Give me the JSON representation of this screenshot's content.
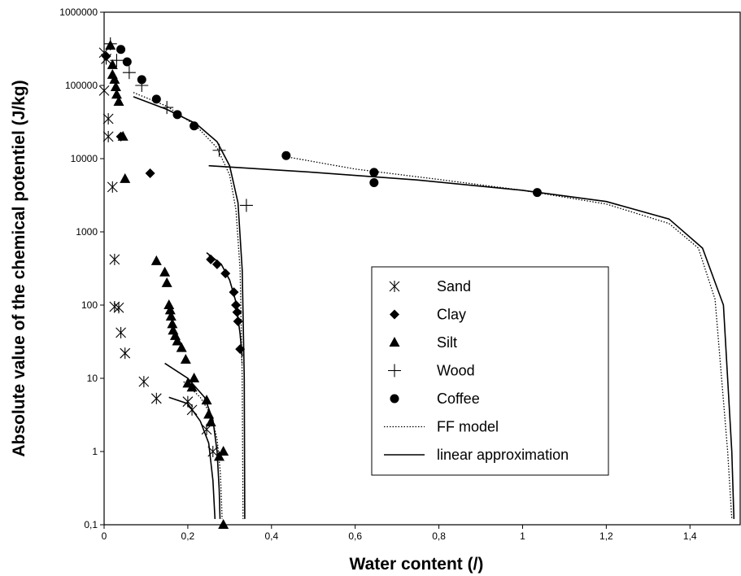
{
  "chart_data": {
    "type": "scatter",
    "xlabel": "Water content (/)",
    "ylabel": "Absolute value of the chemical potentiel (J/kg)",
    "x_scale": "linear",
    "y_scale": "log",
    "xlim": [
      0,
      1.52
    ],
    "ylim": [
      0.1,
      1000000
    ],
    "x_ticks": [
      {
        "value": 0,
        "label": "0"
      },
      {
        "value": 0.2,
        "label": "0,2"
      },
      {
        "value": 0.4,
        "label": "0,4"
      },
      {
        "value": 0.6,
        "label": "0,6"
      },
      {
        "value": 0.8,
        "label": "0,8"
      },
      {
        "value": 1.0,
        "label": "1"
      },
      {
        "value": 1.2,
        "label": "1,2"
      },
      {
        "value": 1.4,
        "label": "1,4"
      }
    ],
    "y_ticks": [
      {
        "value": 0.1,
        "label": "0,1"
      },
      {
        "value": 1,
        "label": "1"
      },
      {
        "value": 10,
        "label": "10"
      },
      {
        "value": 100,
        "label": "100"
      },
      {
        "value": 1000,
        "label": "1000"
      },
      {
        "value": 10000,
        "label": "10000"
      },
      {
        "value": 100000,
        "label": "100000"
      },
      {
        "value": 1000000,
        "label": "1000000"
      }
    ],
    "grid": false,
    "legend_position": "center-right",
    "series": [
      {
        "name": "Sand",
        "marker": "asterisk",
        "points": [
          [
            0.0,
            280000
          ],
          [
            0.005,
            230000
          ],
          [
            0.0,
            85000
          ],
          [
            0.01,
            35000
          ],
          [
            0.01,
            20000
          ],
          [
            0.02,
            4100
          ],
          [
            0.025,
            420
          ],
          [
            0.025,
            95
          ],
          [
            0.035,
            92
          ],
          [
            0.04,
            42
          ],
          [
            0.05,
            22
          ],
          [
            0.095,
            9
          ],
          [
            0.125,
            5.3
          ],
          [
            0.2,
            4.8
          ],
          [
            0.21,
            3.7
          ],
          [
            0.245,
            2.0
          ],
          [
            0.26,
            1.0
          ]
        ]
      },
      {
        "name": "Clay",
        "marker": "diamond",
        "points": [
          [
            0.005,
            250000
          ],
          [
            0.04,
            20000
          ],
          [
            0.11,
            6300
          ],
          [
            0.255,
            420
          ],
          [
            0.27,
            360
          ],
          [
            0.29,
            270
          ],
          [
            0.31,
            150
          ],
          [
            0.315,
            100
          ],
          [
            0.318,
            80
          ],
          [
            0.32,
            60
          ],
          [
            0.325,
            25
          ]
        ]
      },
      {
        "name": "Silt",
        "marker": "triangle",
        "points": [
          [
            0.015,
            350000
          ],
          [
            0.02,
            190000
          ],
          [
            0.02,
            140000
          ],
          [
            0.025,
            120000
          ],
          [
            0.028,
            95000
          ],
          [
            0.03,
            75000
          ],
          [
            0.035,
            60000
          ],
          [
            0.045,
            20000
          ],
          [
            0.05,
            5300
          ],
          [
            0.125,
            400
          ],
          [
            0.145,
            280
          ],
          [
            0.15,
            200
          ],
          [
            0.155,
            100
          ],
          [
            0.158,
            85
          ],
          [
            0.16,
            70
          ],
          [
            0.163,
            55
          ],
          [
            0.165,
            45
          ],
          [
            0.17,
            38
          ],
          [
            0.175,
            32
          ],
          [
            0.185,
            26
          ],
          [
            0.195,
            18
          ],
          [
            0.2,
            8.5
          ],
          [
            0.21,
            7.5
          ],
          [
            0.215,
            10
          ],
          [
            0.245,
            5.0
          ],
          [
            0.25,
            3.2
          ],
          [
            0.255,
            2.5
          ],
          [
            0.275,
            0.85
          ],
          [
            0.285,
            1.0
          ],
          [
            0.285,
            0.1
          ]
        ]
      },
      {
        "name": "Wood",
        "marker": "plus",
        "points": [
          [
            0.015,
            370000
          ],
          [
            0.03,
            220000
          ],
          [
            0.06,
            150000
          ],
          [
            0.09,
            100000
          ],
          [
            0.15,
            50000
          ],
          [
            0.275,
            13000
          ],
          [
            0.34,
            2300
          ]
        ]
      },
      {
        "name": "Coffee",
        "marker": "circle",
        "points": [
          [
            0.04,
            310000
          ],
          [
            0.055,
            210000
          ],
          [
            0.09,
            120000
          ],
          [
            0.125,
            65000
          ],
          [
            0.175,
            40000
          ],
          [
            0.215,
            28000
          ],
          [
            0.435,
            11000
          ],
          [
            0.645,
            6500
          ],
          [
            0.645,
            4700
          ],
          [
            1.035,
            3450
          ]
        ]
      }
    ],
    "model_curves": [
      {
        "name": "FF model",
        "style": "dotted",
        "points": [
          [
            0.07,
            80000
          ],
          [
            0.15,
            52000
          ],
          [
            0.22,
            28000
          ],
          [
            0.27,
            14000
          ],
          [
            0.3,
            6000
          ],
          [
            0.315,
            2000
          ],
          [
            0.325,
            300
          ],
          [
            0.33,
            10
          ],
          [
            0.332,
            0.12
          ]
        ]
      },
      {
        "name": "FF model",
        "style": "dotted",
        "points": [
          [
            0.25,
            480
          ],
          [
            0.28,
            360
          ],
          [
            0.3,
            220
          ],
          [
            0.315,
            110
          ],
          [
            0.325,
            40
          ],
          [
            0.33,
            15
          ]
        ]
      },
      {
        "name": "FF model",
        "style": "dotted",
        "points": [
          [
            0.19,
            9
          ],
          [
            0.23,
            5.5
          ],
          [
            0.255,
            3.2
          ],
          [
            0.27,
            1.5
          ],
          [
            0.278,
            0.5
          ],
          [
            0.282,
            0.12
          ]
        ]
      },
      {
        "name": "FF model",
        "style": "dotted",
        "points": [
          [
            0.44,
            10500
          ],
          [
            0.6,
            7200
          ],
          [
            0.8,
            5200
          ],
          [
            1.0,
            3700
          ],
          [
            1.2,
            2400
          ],
          [
            1.35,
            1300
          ],
          [
            1.42,
            600
          ],
          [
            1.46,
            120
          ],
          [
            1.49,
            1
          ],
          [
            1.5,
            0.12
          ]
        ]
      },
      {
        "name": "linear approximation",
        "style": "solid",
        "points": [
          [
            0.07,
            70000
          ],
          [
            0.15,
            47000
          ],
          [
            0.22,
            30000
          ],
          [
            0.27,
            17000
          ],
          [
            0.3,
            8000
          ],
          [
            0.32,
            2500
          ],
          [
            0.33,
            300
          ],
          [
            0.335,
            10
          ],
          [
            0.336,
            0.12
          ]
        ]
      },
      {
        "name": "linear approximation",
        "style": "solid",
        "points": [
          [
            0.245,
            520
          ],
          [
            0.28,
            360
          ],
          [
            0.3,
            220
          ],
          [
            0.315,
            110
          ],
          [
            0.325,
            40
          ],
          [
            0.33,
            20
          ]
        ]
      },
      {
        "name": "linear approximation",
        "style": "solid",
        "points": [
          [
            0.145,
            16
          ],
          [
            0.2,
            10
          ],
          [
            0.24,
            5.5
          ],
          [
            0.26,
            2.7
          ],
          [
            0.27,
            1.0
          ],
          [
            0.275,
            0.3
          ],
          [
            0.277,
            0.12
          ]
        ]
      },
      {
        "name": "linear approximation",
        "style": "solid",
        "points": [
          [
            0.155,
            5.5
          ],
          [
            0.2,
            4.5
          ],
          [
            0.23,
            2.6
          ],
          [
            0.25,
            1.3
          ],
          [
            0.26,
            0.4
          ],
          [
            0.265,
            0.12
          ]
        ]
      },
      {
        "name": "linear approximation",
        "style": "solid",
        "points": [
          [
            0.25,
            8000
          ],
          [
            0.5,
            6500
          ],
          [
            0.75,
            5100
          ],
          [
            1.0,
            3700
          ],
          [
            1.2,
            2600
          ],
          [
            1.35,
            1500
          ],
          [
            1.43,
            600
          ],
          [
            1.48,
            100
          ],
          [
            1.5,
            1
          ],
          [
            1.505,
            0.12
          ]
        ]
      }
    ],
    "legend": [
      {
        "label": "Sand",
        "marker": "asterisk"
      },
      {
        "label": "Clay",
        "marker": "diamond"
      },
      {
        "label": "Silt",
        "marker": "triangle"
      },
      {
        "label": "Wood",
        "marker": "plus"
      },
      {
        "label": "Coffee",
        "marker": "circle"
      },
      {
        "label": "FF model",
        "marker": "dotted-line"
      },
      {
        "label": "linear approximation",
        "marker": "solid-line"
      }
    ]
  }
}
